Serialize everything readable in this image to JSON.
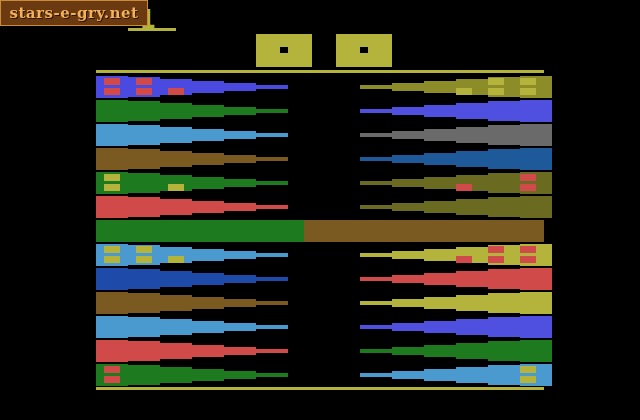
{
  "watermark": {
    "text": "stars-e-gry.net"
  },
  "score": {
    "value": "1"
  },
  "colors": {
    "background": "#000000",
    "frame": "#b4b43c",
    "marker": "#d04a4a",
    "marker_gold": "#b4b43c",
    "center_left": "#1e7a1e",
    "center_right": "#7a5a20"
  },
  "panels": [
    {
      "name": "left-player-box",
      "color": "#b4b43c"
    },
    {
      "name": "right-player-box",
      "color": "#b4b43c"
    }
  ],
  "rows": [
    {
      "left": "#4a4ae0",
      "right": "#8c8c28",
      "left_markers": 2,
      "right_markers": 2,
      "left_marker_color": "marker",
      "right_marker_color": "marker_gold",
      "left_extra": true,
      "right_extra": true
    },
    {
      "left": "#1e7a1e",
      "right": "#5050e0",
      "left_markers": 0,
      "right_markers": 0
    },
    {
      "left": "#4a9ad0",
      "right": "#6a6a6a",
      "left_markers": 0,
      "right_markers": 0
    },
    {
      "left": "#7a5a20",
      "right": "#1e5a9a",
      "left_markers": 0,
      "right_markers": 0
    },
    {
      "left": "#1e7a1e",
      "right": "#6a6a20",
      "left_markers": 1,
      "right_markers": 1,
      "left_marker_color": "marker_gold",
      "right_marker_color": "marker",
      "left_extra": true,
      "right_extra": true
    },
    {
      "left": "#d04a4a",
      "right": "#6a6a20",
      "left_markers": 0,
      "right_markers": 0
    },
    {
      "center": true
    },
    {
      "left": "#4a9ad0",
      "right": "#b4b43c",
      "left_markers": 2,
      "right_markers": 2,
      "left_marker_color": "marker_gold",
      "right_marker_color": "marker",
      "left_extra": true,
      "right_extra": true
    },
    {
      "left": "#1e4aaa",
      "right": "#d04a4a",
      "left_markers": 0,
      "right_markers": 0
    },
    {
      "left": "#7a5a20",
      "right": "#b4b43c",
      "left_markers": 0,
      "right_markers": 0
    },
    {
      "left": "#4a9ad0",
      "right": "#5050e0",
      "left_markers": 0,
      "right_markers": 0
    },
    {
      "left": "#d04a4a",
      "right": "#1e7a1e",
      "left_markers": 0,
      "right_markers": 0
    },
    {
      "left": "#1e7a1e",
      "right": "#4a9ad0",
      "left_markers": 1,
      "right_markers": 1,
      "left_marker_color": "marker",
      "right_marker_color": "marker_gold"
    }
  ]
}
